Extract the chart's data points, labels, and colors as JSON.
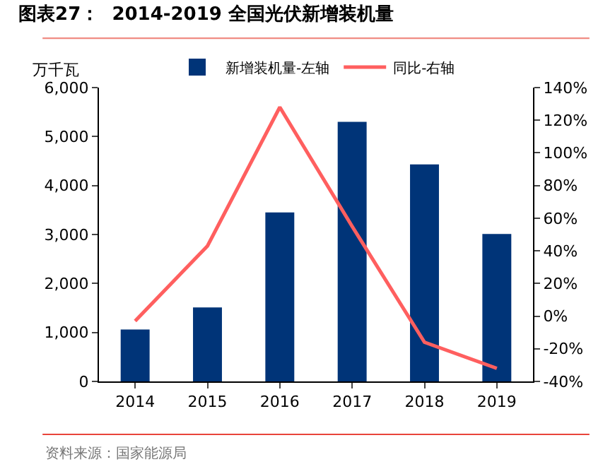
{
  "chart_data": {
    "type": "bar",
    "title": "图表27：  2014-2019 全国光伏新增装机量",
    "ylabel": "万千瓦",
    "categories": [
      "2014",
      "2015",
      "2016",
      "2017",
      "2018",
      "2019"
    ],
    "series": [
      {
        "name": "新增装机量-左轴",
        "color": "#003478",
        "values": [
          1060,
          1510,
          3450,
          5300,
          4430,
          3010
        ]
      },
      {
        "name": "同比-右轴",
        "type": "line",
        "axis": "y2",
        "color": "#ff5f5f",
        "values": [
          -3,
          43,
          128,
          55,
          -16,
          -32
        ]
      }
    ],
    "ylim": [
      0,
      6000
    ],
    "yticks": [
      {
        "value": 0,
        "label": "0"
      },
      {
        "value": 1000,
        "label": "1,000"
      },
      {
        "value": 2000,
        "label": "2,000"
      },
      {
        "value": 3000,
        "label": "3,000"
      },
      {
        "value": 4000,
        "label": "4,000"
      },
      {
        "value": 5000,
        "label": "5,000"
      },
      {
        "value": 6000,
        "label": "6,000"
      }
    ],
    "y2lim": [
      -40,
      140
    ],
    "y2ticks": [
      {
        "value": -40,
        "label": "-40%"
      },
      {
        "value": -20,
        "label": "-20%"
      },
      {
        "value": 0,
        "label": "0%"
      },
      {
        "value": 20,
        "label": "20%"
      },
      {
        "value": 40,
        "label": "40%"
      },
      {
        "value": 60,
        "label": "60%"
      },
      {
        "value": 80,
        "label": "80%"
      },
      {
        "value": 100,
        "label": "100%"
      },
      {
        "value": 120,
        "label": "120%"
      },
      {
        "value": 140,
        "label": "140%"
      }
    ],
    "grid": false,
    "legend": "top",
    "marker": "none",
    "line_style": "solid",
    "annotations": [
      "资料来源：国家能源局"
    ]
  }
}
